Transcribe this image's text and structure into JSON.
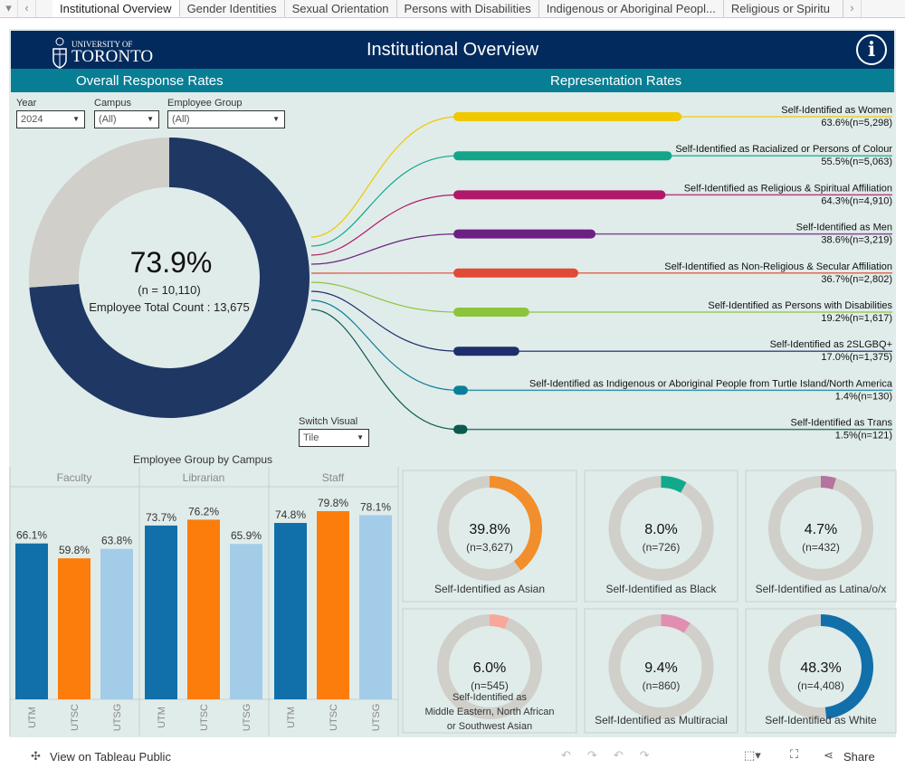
{
  "tabs": [
    "Institutional Overview",
    "Gender Identities",
    "Sexual Orientation",
    "Persons with Disabilities",
    "Indigenous or Aboriginal Peopl...",
    "Religious or Spiritu"
  ],
  "header": {
    "logo_small": "UNIVERSITY OF",
    "logo_big": "TORONTO",
    "title": "Institutional Overview",
    "info": "i"
  },
  "subheaders": {
    "left": "Overall Response Rates",
    "right": "Representation Rates"
  },
  "filters": [
    {
      "label": "Year",
      "value": "2024"
    },
    {
      "label": "Campus",
      "value": "(All)"
    },
    {
      "label": "Employee Group",
      "value": "(All)"
    }
  ],
  "overall": {
    "rate": 73.9,
    "rate_label": "73.9%",
    "n_label": "(n = 10,110)",
    "total_label": "Employee Total Count : 13,675",
    "colors": [
      "#1f3763",
      "#d0cfca"
    ]
  },
  "switch_visual": {
    "label": "Switch Visual",
    "value": "Tile"
  },
  "representation": [
    {
      "label": "Self-Identified as Women",
      "value": "63.6%(n=5,298)",
      "n": 5298,
      "color": "#f0c800"
    },
    {
      "label": "Self-Identified as Racialized or Persons of Colour",
      "value": "55.5%(n=5,063)",
      "n": 5063,
      "color": "#12a589"
    },
    {
      "label": "Self-Identified as Religious & Spiritual Affiliation",
      "value": "64.3%(n=4,910)",
      "n": 4910,
      "color": "#b0186a"
    },
    {
      "label": "Self-Identified as Men",
      "value": "38.6%(n=3,219)",
      "n": 3219,
      "color": "#6b2182"
    },
    {
      "label": "Self-Identified as Non-Religious & Secular Affiliation",
      "value": "36.7%(n=2,802)",
      "n": 2802,
      "color": "#e04a36"
    },
    {
      "label": "Self-Identified as Persons with Disabilities",
      "value": "19.2%(n=1,617)",
      "n": 1617,
      "color": "#8cc43c"
    },
    {
      "label": "Self-Identified as 2SLGBQ+",
      "value": "17.0%(n=1,375)",
      "n": 1375,
      "color": "#1f2e6c"
    },
    {
      "label": "Self-Identified  as Indigenous or Aboriginal People from Turtle Island/North America",
      "value": "1.4%(n=130)",
      "n": 130,
      "color": "#0a7f9a"
    },
    {
      "label": "Self-Identified  as Trans",
      "value": "1.5%(n=121)",
      "n": 121,
      "color": "#0b5a4d"
    }
  ],
  "chart_data": {
    "type": "bar",
    "title": "Employee Group by Campus",
    "groups": [
      "Faculty",
      "Librarian",
      "Staff"
    ],
    "categories": [
      "UTM",
      "UTSC",
      "UTSG"
    ],
    "series": [
      {
        "group": "Faculty",
        "values": [
          66.1,
          59.8,
          63.8
        ]
      },
      {
        "group": "Librarian",
        "values": [
          73.7,
          76.2,
          65.9
        ]
      },
      {
        "group": "Staff",
        "values": [
          74.8,
          79.8,
          78.1
        ]
      }
    ],
    "colors": [
      "#1170aa",
      "#fc7d0b",
      "#a3cce9"
    ],
    "ylim": [
      0,
      90
    ]
  },
  "tiles": [
    {
      "pct": 39.8,
      "pct_label": "39.8%",
      "n_label": "(n=3,627)",
      "label": "Self-Identified as Asian",
      "color": "#f28e2b"
    },
    {
      "pct": 8.0,
      "pct_label": "8.0%",
      "n_label": "(n=726)",
      "label": "Self-Identified as Black",
      "color": "#12a88b"
    },
    {
      "pct": 4.7,
      "pct_label": "4.7%",
      "n_label": "(n=432)",
      "label": "Self-Identified as Latina/o/x",
      "color": "#b5739d"
    },
    {
      "pct": 6.0,
      "pct_label": "6.0%",
      "n_label": "(n=545)",
      "label": "Self-Identified as\nMiddle Eastern, North African\nor Southwest Asian",
      "color": "#f8a89a"
    },
    {
      "pct": 9.4,
      "pct_label": "9.4%",
      "n_label": "(n=860)",
      "label": "Self-Identified as Multiracial",
      "color": "#e08fb0"
    },
    {
      "pct": 48.3,
      "pct_label": "48.3%",
      "n_label": "(n=4,408)",
      "label": "Self-Identified as White",
      "color": "#1170aa"
    }
  ],
  "footer": {
    "view": "View on Tableau Public",
    "share": "Share"
  }
}
